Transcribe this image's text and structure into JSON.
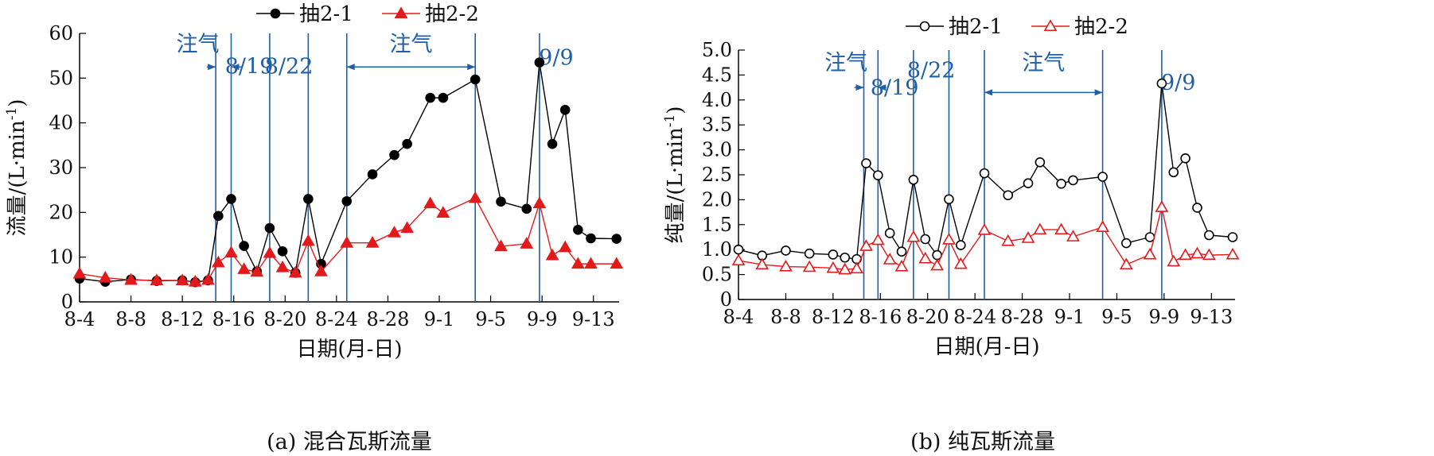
{
  "chart_data": [
    {
      "type": "line",
      "caption": "(a) 混合瓦斯流量",
      "xlabel": "日期(月-日)",
      "ylabel": "流量/(L·min",
      "ylabel_sup": "-1",
      "ylabel_close": ")",
      "ylim": [
        0,
        60
      ],
      "yticks": [
        0,
        10,
        20,
        30,
        40,
        50,
        60
      ],
      "ytick_labels": [
        "0",
        "10",
        "20",
        "30",
        "40",
        "50",
        "60"
      ],
      "xlim": [
        0,
        42
      ],
      "xticks": [
        0,
        4,
        8,
        12,
        16,
        20,
        24,
        28,
        32,
        36,
        40
      ],
      "xtick_labels": [
        "8-4",
        "8-8",
        "8-12",
        "8-16",
        "8-20",
        "8-24",
        "8-28",
        "9-1",
        "9-5",
        "9-9",
        "9-13"
      ],
      "legend": {
        "position": "top-center",
        "items": [
          {
            "label": "抽2-1",
            "marker": "filled-circle",
            "color": "#000000"
          },
          {
            "label": "抽2-2",
            "marker": "filled-triangle",
            "color": "#e31a1c"
          }
        ]
      },
      "vlines": [
        10.6,
        11.8,
        14.8,
        17.8,
        20.8,
        30.8,
        35.8
      ],
      "annotations": [
        {
          "text": "注气",
          "x": 9.2,
          "y": 56
        },
        {
          "text": "8/19",
          "x": 13.2,
          "y": 51
        },
        {
          "text": "8/22",
          "x": 16.3,
          "y": 51
        },
        {
          "text": "注气",
          "x": 25.8,
          "y": 56
        },
        {
          "text": "9/9",
          "x": 37.1,
          "y": 53
        }
      ],
      "arrows": [
        {
          "y": 52.5,
          "x1": 9.9,
          "x2": 10.6,
          "dir": "right"
        },
        {
          "y": 52.5,
          "x1": 11.8,
          "x2": 12.6,
          "dir": "left"
        },
        {
          "y": 52.5,
          "x1": 20.8,
          "x2": 30.8,
          "dir": "both"
        }
      ],
      "series": [
        {
          "name": "抽2-1",
          "color": "#000000",
          "marker": "filled-circle",
          "x": [
            0,
            2,
            4,
            6,
            8,
            9,
            10,
            10.8,
            11.8,
            12.8,
            13.8,
            14.8,
            15.8,
            16.8,
            17.8,
            18.8,
            20.8,
            22.8,
            24.5,
            25.5,
            27.3,
            28.3,
            30.8,
            32.8,
            34.8,
            35.8,
            36.8,
            37.8,
            38.8,
            39.8,
            41.8
          ],
          "y": [
            5.2,
            4.5,
            5.0,
            4.7,
            4.8,
            4.4,
            4.8,
            19.2,
            23.0,
            12.5,
            6.8,
            16.5,
            11.3,
            6.5,
            23.0,
            8.5,
            22.5,
            28.5,
            32.8,
            35.3,
            45.6,
            45.6,
            49.7,
            22.4,
            20.8,
            53.5,
            35.3,
            42.9,
            16.1,
            14.2,
            14.1
          ]
        },
        {
          "name": "抽2-2",
          "color": "#e31a1c",
          "marker": "filled-triangle",
          "x": [
            0,
            2,
            4,
            6,
            8,
            9,
            10,
            10.8,
            11.8,
            12.8,
            13.8,
            14.8,
            15.8,
            16.8,
            17.8,
            18.8,
            20.8,
            22.8,
            24.5,
            25.5,
            27.3,
            28.3,
            30.8,
            32.8,
            34.8,
            35.8,
            36.8,
            37.8,
            38.8,
            39.8,
            41.8
          ],
          "y": [
            6.3,
            5.4,
            4.9,
            4.8,
            4.8,
            4.5,
            4.9,
            8.8,
            11.0,
            7.3,
            6.7,
            10.9,
            7.7,
            6.5,
            13.6,
            6.8,
            13.2,
            13.2,
            15.5,
            16.5,
            22.0,
            19.9,
            23.2,
            12.4,
            13.0,
            22.0,
            10.4,
            12.2,
            8.5,
            8.5,
            8.5
          ]
        }
      ]
    },
    {
      "type": "line",
      "caption": "(b) 纯瓦斯流量",
      "xlabel": "日期(月-日)",
      "ylabel": "纯量/(L·min",
      "ylabel_sup": "-1",
      "ylabel_close": ")",
      "ylim": [
        0,
        5
      ],
      "yticks": [
        0,
        0.5,
        1,
        1.5,
        2,
        2.5,
        3,
        3.5,
        4,
        4.5,
        5
      ],
      "ytick_labels": [
        "0",
        "0.5",
        "1.0",
        "1.5",
        "2.0",
        "2.5",
        "3.0",
        "3.5",
        "4.0",
        "4.5",
        "5.0"
      ],
      "xlim": [
        0,
        42
      ],
      "xticks": [
        0,
        4,
        8,
        12,
        16,
        20,
        24,
        28,
        32,
        36,
        40
      ],
      "xtick_labels": [
        "8-4",
        "8-8",
        "8-12",
        "8-16",
        "8-20",
        "8-24",
        "8-28",
        "9-1",
        "9-5",
        "9-9",
        "9-13"
      ],
      "legend": {
        "position": "top-center",
        "items": [
          {
            "label": "抽2-1",
            "marker": "open-circle",
            "color": "#000000"
          },
          {
            "label": "抽2-2",
            "marker": "open-triangle",
            "color": "#e31a1c"
          }
        ]
      },
      "vlines": [
        10.6,
        11.8,
        14.8,
        17.8,
        20.8,
        30.8,
        35.8
      ],
      "annotations": [
        {
          "text": "注气",
          "x": 9.1,
          "y": 4.6
        },
        {
          "text": "8/19",
          "x": 13.2,
          "y": 4.1
        },
        {
          "text": "8/22",
          "x": 16.3,
          "y": 4.45
        },
        {
          "text": "注气",
          "x": 25.8,
          "y": 4.6
        },
        {
          "text": "9/9",
          "x": 37.2,
          "y": 4.2
        }
      ],
      "arrows": [
        {
          "y": 4.25,
          "x1": 9.8,
          "x2": 10.6,
          "dir": "right"
        },
        {
          "y": 4.25,
          "x1": 11.8,
          "x2": 12.5,
          "dir": "left"
        },
        {
          "y": 4.15,
          "x1": 20.8,
          "x2": 30.8,
          "dir": "both"
        }
      ],
      "series": [
        {
          "name": "抽2-1",
          "color": "#000000",
          "marker": "open-circle",
          "x": [
            0,
            2,
            4,
            6,
            8,
            9,
            10,
            10.8,
            11.8,
            12.8,
            13.8,
            14.8,
            15.8,
            16.8,
            17.8,
            18.8,
            20.8,
            22.8,
            24.5,
            25.5,
            27.3,
            28.3,
            30.8,
            32.8,
            34.8,
            35.8,
            36.8,
            37.8,
            38.8,
            39.8,
            41.8
          ],
          "y": [
            1.0,
            0.88,
            0.98,
            0.92,
            0.9,
            0.84,
            0.81,
            2.73,
            2.49,
            1.33,
            0.96,
            2.4,
            1.21,
            0.89,
            2.01,
            1.09,
            2.53,
            2.09,
            2.33,
            2.75,
            2.32,
            2.39,
            2.46,
            1.13,
            1.25,
            4.33,
            2.55,
            2.83,
            1.84,
            1.29,
            1.25
          ]
        },
        {
          "name": "抽2-2",
          "color": "#e31a1c",
          "marker": "open-triangle",
          "x": [
            0,
            2,
            4,
            6,
            8,
            9,
            10,
            10.8,
            11.8,
            12.8,
            13.8,
            14.8,
            15.8,
            16.8,
            17.8,
            18.8,
            20.8,
            22.8,
            24.5,
            25.5,
            27.3,
            28.3,
            30.8,
            32.8,
            34.8,
            35.8,
            36.8,
            37.8,
            38.8,
            39.8,
            41.8
          ],
          "y": [
            0.78,
            0.7,
            0.66,
            0.65,
            0.63,
            0.6,
            0.62,
            1.07,
            1.19,
            0.8,
            0.66,
            1.25,
            0.82,
            0.68,
            1.2,
            0.71,
            1.39,
            1.17,
            1.23,
            1.4,
            1.4,
            1.26,
            1.45,
            0.7,
            0.9,
            1.85,
            0.76,
            0.89,
            0.92,
            0.89,
            0.9
          ]
        }
      ]
    }
  ]
}
